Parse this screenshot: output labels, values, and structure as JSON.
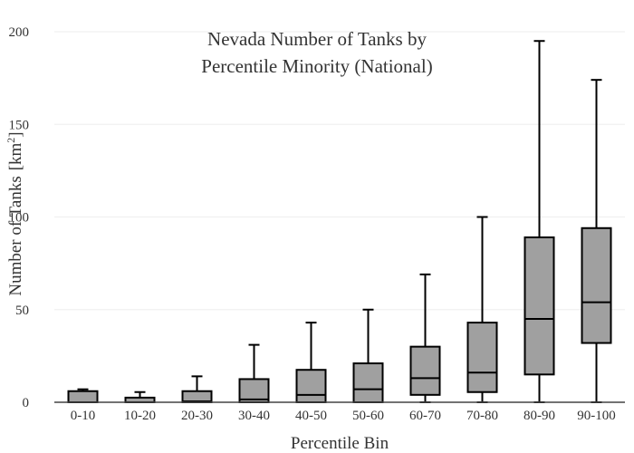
{
  "chart_data": {
    "type": "box",
    "title_lines": [
      "Nevada Number of Tanks by",
      "Percentile Minority (National)"
    ],
    "xlabel": "Percentile Bin",
    "ylabel": "Number of Tanks",
    "ylabel_unit": "[km",
    "ylabel_unit_sup": "2",
    "ylabel_unit_close": "]",
    "ylim": [
      0,
      200
    ],
    "yticks": [
      0,
      50,
      100,
      150,
      200
    ],
    "grid": true,
    "box_fill": "#a0a0a0",
    "line_color": "#000000",
    "categories": [
      "0-10",
      "10-20",
      "20-30",
      "30-40",
      "40-50",
      "50-60",
      "60-70",
      "70-80",
      "80-90",
      "90-100"
    ],
    "boxes": [
      {
        "min": 0,
        "q1": 0,
        "median": 0,
        "q3": 6,
        "max": 7
      },
      {
        "min": 0,
        "q1": 0,
        "median": 0,
        "q3": 2.5,
        "max": 5.5
      },
      {
        "min": 0,
        "q1": 0,
        "median": 0.5,
        "q3": 6,
        "max": 14
      },
      {
        "min": 0,
        "q1": 0,
        "median": 1.5,
        "q3": 12.5,
        "max": 31
      },
      {
        "min": 0,
        "q1": 0,
        "median": 4,
        "q3": 17.5,
        "max": 43
      },
      {
        "min": 0,
        "q1": 0,
        "median": 7,
        "q3": 21,
        "max": 50
      },
      {
        "min": 0,
        "q1": 4,
        "median": 13,
        "q3": 30,
        "max": 69
      },
      {
        "min": 0,
        "q1": 5.5,
        "median": 16,
        "q3": 43,
        "max": 100
      },
      {
        "min": 0,
        "q1": 15,
        "median": 45,
        "q3": 89,
        "max": 195
      },
      {
        "min": 0,
        "q1": 32,
        "median": 54,
        "q3": 94,
        "max": 174
      }
    ]
  }
}
